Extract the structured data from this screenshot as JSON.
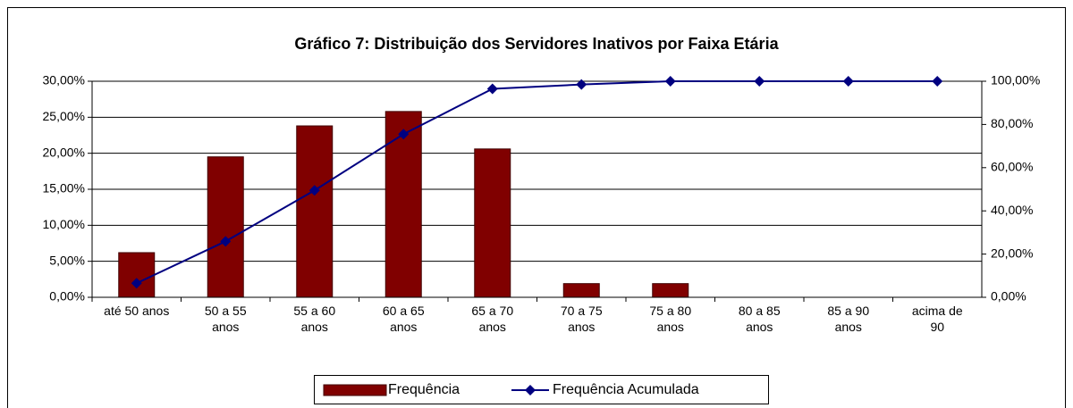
{
  "chart_data": {
    "type": "bar_line",
    "title": "Gráfico 7: Distribuição dos Servidores Inativos por Faixa Etária",
    "categories": [
      "até 50 anos",
      "50 a 55\nanos",
      "55 a 60\nanos",
      "60 a 65\nanos",
      "65 a 70\nanos",
      "70 a 75\nanos",
      "75 a 80\nanos",
      "80 a 85\nanos",
      "85 a 90\nanos",
      "acima de\n90"
    ],
    "series": [
      {
        "name": "Frequência",
        "type": "bar",
        "color": "#800000",
        "values": [
          6.2,
          19.5,
          23.8,
          25.8,
          20.6,
          1.9,
          1.9,
          0,
          0,
          0
        ]
      },
      {
        "name": "Frequência Acumulada",
        "type": "line",
        "axis": "y2",
        "color": "#000080",
        "values": [
          6.5,
          25.9,
          49.5,
          75.5,
          96.5,
          98.5,
          100,
          100,
          100,
          100
        ]
      }
    ],
    "ylim": [
      0,
      30
    ],
    "yticks": [
      {
        "value": 0,
        "label": "0,00%"
      },
      {
        "value": 5,
        "label": "5,00%"
      },
      {
        "value": 10,
        "label": "10,00%"
      },
      {
        "value": 15,
        "label": "15,00%"
      },
      {
        "value": 20,
        "label": "20,00%"
      },
      {
        "value": 25,
        "label": "25,00%"
      },
      {
        "value": 30,
        "label": "30,00%"
      }
    ],
    "y2lim": [
      0,
      100
    ],
    "y2ticks": [
      {
        "value": 0,
        "label": "0,00%"
      },
      {
        "value": 20,
        "label": "20,00%"
      },
      {
        "value": 40,
        "label": "40,00%"
      },
      {
        "value": 60,
        "label": "60,00%"
      },
      {
        "value": 80,
        "label": "80,00%"
      },
      {
        "value": 100,
        "label": "100,00%"
      }
    ],
    "grid": true,
    "legend": "bottom"
  }
}
